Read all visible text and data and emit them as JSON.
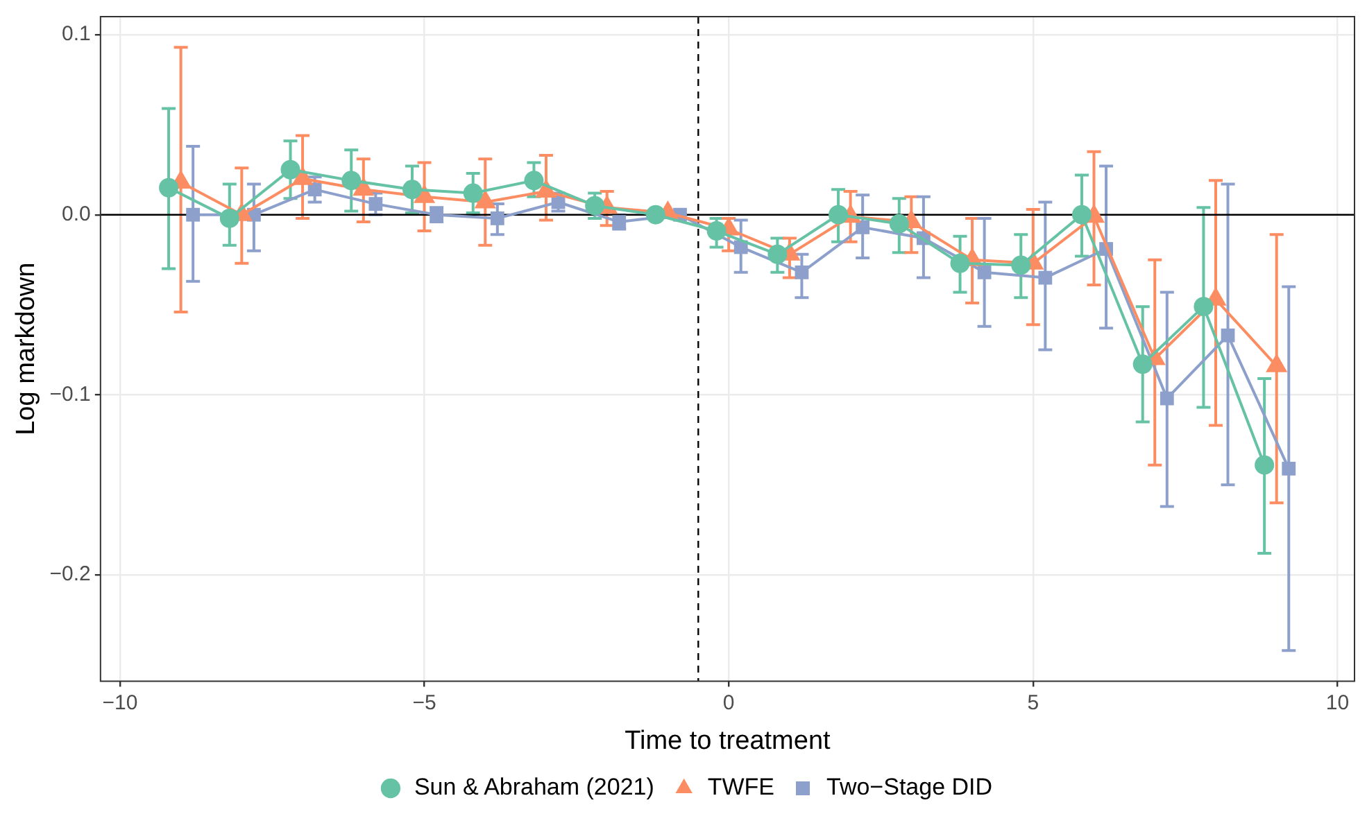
{
  "chart_data": {
    "type": "line",
    "xlabel": "Time to treatment",
    "ylabel": "Log markdown",
    "xlim": [
      -10.32,
      10.28
    ],
    "ylim": [
      -0.259,
      0.11
    ],
    "xticks": [
      {
        "value": -10,
        "label": "−10"
      },
      {
        "value": -5,
        "label": "−5"
      },
      0,
      5,
      10
    ],
    "yticks": [
      {
        "value": -0.2,
        "label": "−0.2"
      },
      {
        "value": -0.1,
        "label": "−0.1"
      },
      {
        "value": 0,
        "label": "0.0"
      },
      0.1
    ],
    "grid": true,
    "legend": "bottom",
    "ref_lines": [
      {
        "axis": "y",
        "value": 0,
        "color": "#000000",
        "line_style": "solid"
      },
      {
        "axis": "x",
        "value": -0.5,
        "color": "#000000",
        "line_style": "dashed"
      }
    ],
    "series": [
      {
        "name": "Sun & Abraham (2021)",
        "color": "#66c2a5",
        "marker": "circle",
        "x": [
          -9.2,
          -8.2,
          -7.2,
          -6.2,
          -5.2,
          -4.2,
          -3.2,
          -2.2,
          -1.2,
          -0.2,
          0.8,
          1.8,
          2.8,
          3.8,
          4.8,
          5.8,
          6.8,
          7.8,
          8.8
        ],
        "values": [
          0.015,
          -0.002,
          0.025,
          0.019,
          0.014,
          0.012,
          0.019,
          0.005,
          0.0,
          -0.009,
          -0.022,
          0.0,
          -0.005,
          -0.027,
          -0.028,
          0.0,
          -0.083,
          -0.051,
          -0.139
        ],
        "errors": [
          [
            -0.03,
            0.059
          ],
          [
            -0.017,
            0.017
          ],
          [
            0.009,
            0.041
          ],
          [
            0.002,
            0.036
          ],
          [
            0.001,
            0.027
          ],
          [
            0.001,
            0.023
          ],
          [
            0.01,
            0.029
          ],
          [
            -0.002,
            0.012
          ],
          null,
          [
            -0.018,
            -0.002
          ],
          [
            -0.032,
            -0.013
          ],
          [
            -0.015,
            0.014
          ],
          [
            -0.021,
            0.009
          ],
          [
            -0.043,
            -0.012
          ],
          [
            -0.046,
            -0.011
          ],
          [
            -0.023,
            0.022
          ],
          [
            -0.115,
            -0.051
          ],
          [
            -0.107,
            0.004
          ],
          [
            -0.188,
            -0.091
          ]
        ]
      },
      {
        "name": "TWFE",
        "color": "#fc8d62",
        "marker": "triangle",
        "x": [
          -9,
          -8,
          -7,
          -6,
          -5,
          -4,
          -3,
          -2,
          -1,
          0,
          1,
          2,
          3,
          4,
          5,
          6,
          7,
          8,
          9
        ],
        "values": [
          0.018,
          0.0,
          0.02,
          0.014,
          0.01,
          0.007,
          0.013,
          0.004,
          0.001,
          -0.008,
          -0.022,
          -0.001,
          -0.004,
          -0.025,
          -0.027,
          -0.001,
          -0.08,
          -0.047,
          -0.084
        ],
        "errors": [
          [
            -0.054,
            0.093
          ],
          [
            -0.027,
            0.026
          ],
          [
            -0.002,
            0.044
          ],
          [
            -0.004,
            0.031
          ],
          [
            -0.009,
            0.029
          ],
          [
            -0.017,
            0.031
          ],
          [
            -0.003,
            0.033
          ],
          [
            -0.006,
            0.013
          ],
          null,
          [
            -0.02,
            -0.002
          ],
          [
            -0.035,
            -0.013
          ],
          [
            -0.015,
            0.013
          ],
          [
            -0.021,
            0.01
          ],
          [
            -0.049,
            -0.002
          ],
          [
            -0.061,
            0.003
          ],
          [
            -0.039,
            0.035
          ],
          [
            -0.139,
            -0.025
          ],
          [
            -0.117,
            0.019
          ],
          [
            -0.16,
            -0.011
          ]
        ]
      },
      {
        "name": "Two−Stage DID",
        "color": "#8da0cb",
        "marker": "square",
        "x": [
          -8.8,
          -7.8,
          -6.8,
          -5.8,
          -4.8,
          -3.8,
          -2.8,
          -1.8,
          -0.8,
          0.2,
          1.2,
          2.2,
          3.2,
          4.2,
          5.2,
          6.2,
          7.2,
          8.2,
          9.2
        ],
        "values": [
          0.0,
          0.0,
          0.014,
          0.006,
          0.0,
          -0.002,
          0.007,
          -0.004,
          0.0,
          -0.018,
          -0.032,
          -0.007,
          -0.013,
          -0.032,
          -0.035,
          -0.019,
          -0.102,
          -0.067,
          -0.141
        ],
        "errors": [
          [
            -0.037,
            0.038
          ],
          [
            -0.02,
            0.017
          ],
          [
            0.007,
            0.021
          ],
          [
            0.0,
            0.012
          ],
          [
            -0.004,
            0.004
          ],
          [
            -0.011,
            0.006
          ],
          [
            0.002,
            0.012
          ],
          [
            -0.008,
            0.0
          ],
          null,
          [
            -0.032,
            -0.003
          ],
          [
            -0.046,
            -0.022
          ],
          [
            -0.024,
            0.011
          ],
          [
            -0.035,
            0.01
          ],
          [
            -0.062,
            -0.002
          ],
          [
            -0.075,
            0.007
          ],
          [
            -0.063,
            0.027
          ],
          [
            -0.162,
            -0.043
          ],
          [
            -0.15,
            0.017
          ],
          [
            -0.242,
            -0.04
          ]
        ]
      }
    ]
  }
}
